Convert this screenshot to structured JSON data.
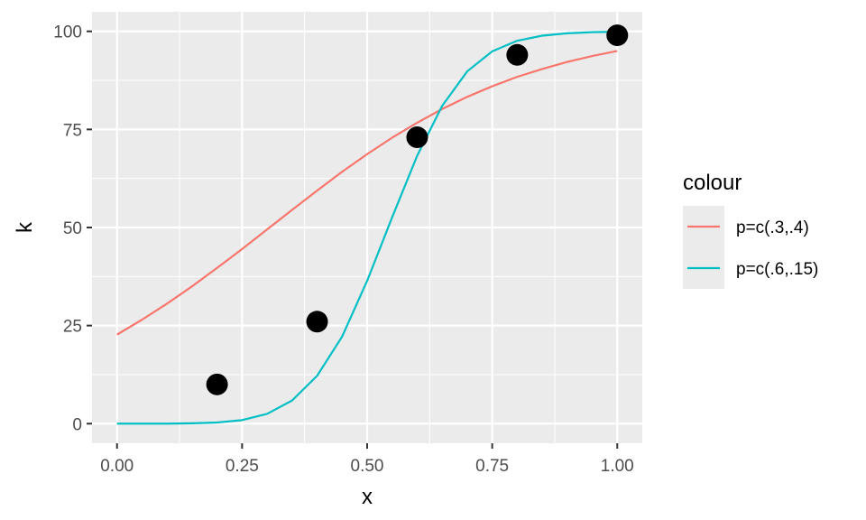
{
  "chart_data": {
    "type": "scatter",
    "xlabel": "x",
    "ylabel": "k",
    "xlim": [
      -0.05,
      1.05
    ],
    "ylim": [
      -5,
      105
    ],
    "x_ticks": [
      0,
      0.25,
      0.5,
      0.75,
      1
    ],
    "x_tick_labels": [
      "0.00",
      "0.25",
      "0.50",
      "0.75",
      "1.00"
    ],
    "y_ticks": [
      0,
      25,
      50,
      75,
      100
    ],
    "y_tick_labels": [
      "0",
      "25",
      "50",
      "75",
      "100"
    ],
    "grid": true,
    "legend_position": "right",
    "points": {
      "x": [
        0.2,
        0.4,
        0.6,
        0.8,
        1.0
      ],
      "y": [
        10,
        26,
        73,
        94,
        99
      ]
    },
    "legend": {
      "title": "colour"
    },
    "series": [
      {
        "name": "p=c(.3,.4)",
        "type": "line",
        "color": "#F8766D",
        "x": [
          0,
          0.05,
          0.1,
          0.15,
          0.2,
          0.25,
          0.3,
          0.35,
          0.4,
          0.45,
          0.5,
          0.55,
          0.6,
          0.65,
          0.7,
          0.75,
          0.8,
          0.85,
          0.9,
          0.95,
          1.0
        ],
        "y": [
          22.7,
          26.5,
          30.6,
          35.0,
          39.7,
          44.5,
          49.5,
          54.5,
          59.4,
          64.2,
          68.7,
          72.9,
          76.7,
          80.2,
          83.3,
          86.0,
          88.4,
          90.4,
          92.2,
          93.7,
          95.0
        ]
      },
      {
        "name": "p=c(.6,.15)",
        "type": "line",
        "color": "#00BFC4",
        "x": [
          0,
          0.05,
          0.1,
          0.15,
          0.2,
          0.25,
          0.3,
          0.35,
          0.4,
          0.45,
          0.5,
          0.55,
          0.6,
          0.65,
          0.7,
          0.75,
          0.8,
          0.85,
          0.9,
          0.95,
          1.0
        ],
        "y": [
          0.0,
          0.0,
          0.0,
          0.1,
          0.3,
          0.9,
          2.5,
          5.9,
          12.2,
          22.2,
          36.4,
          52.6,
          68.3,
          81.0,
          89.8,
          94.9,
          97.6,
          98.9,
          99.5,
          99.8,
          99.9
        ]
      }
    ]
  }
}
